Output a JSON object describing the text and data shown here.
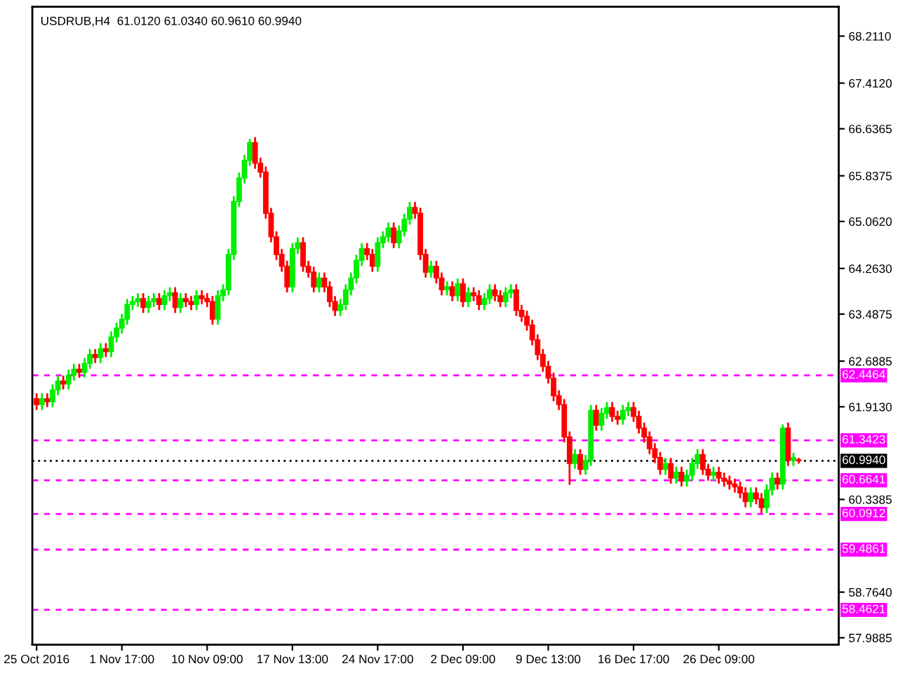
{
  "chart_data": {
    "type": "candlestick",
    "title": "USDRUB,H4  61.0120 61.0340 60.9610 60.9940",
    "categories": [
      "25 Oct 2016",
      null,
      null,
      null,
      null,
      null,
      null,
      null,
      null,
      null,
      null,
      null,
      null,
      null,
      null,
      null,
      "1 Nov 17:00",
      null,
      null,
      null,
      null,
      null,
      null,
      null,
      null,
      null,
      null,
      null,
      null,
      null,
      null,
      null,
      "10 Nov 09:00",
      null,
      null,
      null,
      null,
      null,
      null,
      null,
      null,
      null,
      null,
      null,
      null,
      null,
      null,
      null,
      "17 Nov 13:00",
      null,
      null,
      null,
      null,
      null,
      null,
      null,
      null,
      null,
      null,
      null,
      null,
      null,
      null,
      null,
      "24 Nov 17:00",
      null,
      null,
      null,
      null,
      null,
      null,
      null,
      null,
      null,
      null,
      null,
      null,
      null,
      null,
      null,
      "2 Dec 09:00",
      null,
      null,
      null,
      null,
      null,
      null,
      null,
      null,
      null,
      null,
      null,
      null,
      null,
      null,
      null,
      "9 Dec 13:00",
      null,
      null,
      null,
      null,
      null,
      null,
      null,
      null,
      null,
      null,
      null,
      null,
      null,
      null,
      null,
      "16 Dec 17:00",
      null,
      null,
      null,
      null,
      null,
      null,
      null,
      null,
      null,
      null,
      null,
      null,
      null,
      null,
      null,
      "26 Dec 09:00",
      null,
      null,
      null,
      null,
      null,
      null,
      null,
      null,
      null,
      null,
      null,
      null,
      null,
      null,
      null
    ],
    "ohlc": [
      [
        62.05,
        62.13,
        61.87,
        61.95
      ],
      [
        61.95,
        62.13,
        61.87,
        62.05
      ],
      [
        62.05,
        62.13,
        61.92,
        62.0
      ],
      [
        62.0,
        62.28,
        61.92,
        62.2
      ],
      [
        62.2,
        62.43,
        62.12,
        62.35
      ],
      [
        62.35,
        62.43,
        62.22,
        62.3
      ],
      [
        62.3,
        62.53,
        62.22,
        62.45
      ],
      [
        62.45,
        62.63,
        62.37,
        62.55
      ],
      [
        62.55,
        62.63,
        62.42,
        62.5
      ],
      [
        62.5,
        62.73,
        62.42,
        62.65
      ],
      [
        62.65,
        62.88,
        62.57,
        62.8
      ],
      [
        62.8,
        62.88,
        62.67,
        62.75
      ],
      [
        62.75,
        62.98,
        62.67,
        62.9
      ],
      [
        62.9,
        62.98,
        62.77,
        62.85
      ],
      [
        62.85,
        63.18,
        62.77,
        63.1
      ],
      [
        63.1,
        63.33,
        63.02,
        63.25
      ],
      [
        63.25,
        63.48,
        63.17,
        63.4
      ],
      [
        63.4,
        63.73,
        63.32,
        63.65
      ],
      [
        63.65,
        63.78,
        63.57,
        63.7
      ],
      [
        63.7,
        63.83,
        63.62,
        63.75
      ],
      [
        63.75,
        63.83,
        63.52,
        63.6
      ],
      [
        63.6,
        63.78,
        63.52,
        63.7
      ],
      [
        63.7,
        63.83,
        63.62,
        63.75
      ],
      [
        63.75,
        63.83,
        63.57,
        63.65
      ],
      [
        63.65,
        63.88,
        63.57,
        63.8
      ],
      [
        63.8,
        63.93,
        63.72,
        63.85
      ],
      [
        63.85,
        63.93,
        63.52,
        63.6
      ],
      [
        63.6,
        63.83,
        63.52,
        63.75
      ],
      [
        63.75,
        63.83,
        63.62,
        63.7
      ],
      [
        63.7,
        63.78,
        63.57,
        63.65
      ],
      [
        63.65,
        63.88,
        63.57,
        63.8
      ],
      [
        63.8,
        63.88,
        63.67,
        63.75
      ],
      [
        63.75,
        63.83,
        63.62,
        63.7
      ],
      [
        63.7,
        63.78,
        63.32,
        63.4
      ],
      [
        63.4,
        63.88,
        63.32,
        63.8
      ],
      [
        63.8,
        63.98,
        63.72,
        63.9
      ],
      [
        63.9,
        64.58,
        63.82,
        64.5
      ],
      [
        64.5,
        65.48,
        64.42,
        65.4
      ],
      [
        65.4,
        65.88,
        65.32,
        65.8
      ],
      [
        65.8,
        66.18,
        65.72,
        66.1
      ],
      [
        66.1,
        66.45,
        66.02,
        66.4
      ],
      [
        66.4,
        66.48,
        65.97,
        66.05
      ],
      [
        66.05,
        66.13,
        65.82,
        65.9
      ],
      [
        65.9,
        65.98,
        65.12,
        65.2
      ],
      [
        65.2,
        65.28,
        64.72,
        64.8
      ],
      [
        64.8,
        64.88,
        64.42,
        64.5
      ],
      [
        64.5,
        64.58,
        64.22,
        64.3
      ],
      [
        64.3,
        64.38,
        63.87,
        63.95
      ],
      [
        63.95,
        64.68,
        63.87,
        64.6
      ],
      [
        64.6,
        64.78,
        64.52,
        64.7
      ],
      [
        64.7,
        64.78,
        64.22,
        64.3
      ],
      [
        64.3,
        64.38,
        64.12,
        64.2
      ],
      [
        64.2,
        64.28,
        63.87,
        63.95
      ],
      [
        63.95,
        64.18,
        63.87,
        64.1
      ],
      [
        64.1,
        64.18,
        63.87,
        63.95
      ],
      [
        63.95,
        64.03,
        63.62,
        63.7
      ],
      [
        63.7,
        63.78,
        63.47,
        63.55
      ],
      [
        63.55,
        63.73,
        63.47,
        63.65
      ],
      [
        63.65,
        63.98,
        63.57,
        63.9
      ],
      [
        63.9,
        64.18,
        63.82,
        64.1
      ],
      [
        64.1,
        64.48,
        64.02,
        64.4
      ],
      [
        64.4,
        64.68,
        64.32,
        64.6
      ],
      [
        64.6,
        64.68,
        64.42,
        64.5
      ],
      [
        64.5,
        64.58,
        64.22,
        64.3
      ],
      [
        64.3,
        64.78,
        64.22,
        64.7
      ],
      [
        64.7,
        64.88,
        64.62,
        64.8
      ],
      [
        64.8,
        65.03,
        64.72,
        64.95
      ],
      [
        64.95,
        65.03,
        64.62,
        64.7
      ],
      [
        64.7,
        64.98,
        64.62,
        64.9
      ],
      [
        64.9,
        65.18,
        64.82,
        65.1
      ],
      [
        65.1,
        65.38,
        65.02,
        65.3
      ],
      [
        65.3,
        65.38,
        65.12,
        65.2
      ],
      [
        65.2,
        65.28,
        64.42,
        64.5
      ],
      [
        64.5,
        64.58,
        64.12,
        64.2
      ],
      [
        64.2,
        64.38,
        64.12,
        64.3
      ],
      [
        64.3,
        64.38,
        64.02,
        64.1
      ],
      [
        64.1,
        64.18,
        63.82,
        63.9
      ],
      [
        63.9,
        64.03,
        63.82,
        63.95
      ],
      [
        63.95,
        64.03,
        63.72,
        63.8
      ],
      [
        63.8,
        64.08,
        63.72,
        64.0
      ],
      [
        64.0,
        64.08,
        63.62,
        63.7
      ],
      [
        63.7,
        63.93,
        63.62,
        63.85
      ],
      [
        63.85,
        63.93,
        63.72,
        63.8
      ],
      [
        63.8,
        63.88,
        63.57,
        63.65
      ],
      [
        63.65,
        63.83,
        63.57,
        63.75
      ],
      [
        63.75,
        63.98,
        63.67,
        63.9
      ],
      [
        63.9,
        63.98,
        63.72,
        63.8
      ],
      [
        63.8,
        63.88,
        63.62,
        63.7
      ],
      [
        63.7,
        63.93,
        63.62,
        63.85
      ],
      [
        63.85,
        63.98,
        63.77,
        63.9
      ],
      [
        63.9,
        63.98,
        63.47,
        63.55
      ],
      [
        63.55,
        63.63,
        63.37,
        63.45
      ],
      [
        63.45,
        63.53,
        63.22,
        63.3
      ],
      [
        63.3,
        63.38,
        62.97,
        63.05
      ],
      [
        63.05,
        63.13,
        62.72,
        62.8
      ],
      [
        62.8,
        62.88,
        62.52,
        62.6
      ],
      [
        62.6,
        62.68,
        62.32,
        62.4
      ],
      [
        62.4,
        62.48,
        62.02,
        62.1
      ],
      [
        62.1,
        62.18,
        61.87,
        61.95
      ],
      [
        61.95,
        62.03,
        61.32,
        61.4
      ],
      [
        61.4,
        61.48,
        60.6,
        60.95
      ],
      [
        60.95,
        61.18,
        60.87,
        61.1
      ],
      [
        61.1,
        61.18,
        60.77,
        60.85
      ],
      [
        60.85,
        61.08,
        60.77,
        61.0
      ],
      [
        61.0,
        61.93,
        60.92,
        61.85
      ],
      [
        61.85,
        61.93,
        61.52,
        61.6
      ],
      [
        61.6,
        61.88,
        61.52,
        61.8
      ],
      [
        61.8,
        61.98,
        61.72,
        61.9
      ],
      [
        61.9,
        61.98,
        61.67,
        61.75
      ],
      [
        61.75,
        61.83,
        61.62,
        61.7
      ],
      [
        61.7,
        61.93,
        61.62,
        61.85
      ],
      [
        61.85,
        61.98,
        61.77,
        61.9
      ],
      [
        61.9,
        61.98,
        61.67,
        61.75
      ],
      [
        61.75,
        61.83,
        61.47,
        61.55
      ],
      [
        61.55,
        61.63,
        61.32,
        61.4
      ],
      [
        61.4,
        61.48,
        61.12,
        61.2
      ],
      [
        61.2,
        61.28,
        60.97,
        61.05
      ],
      [
        61.05,
        61.13,
        60.77,
        60.85
      ],
      [
        60.85,
        61.03,
        60.77,
        60.95
      ],
      [
        60.95,
        61.03,
        60.62,
        60.7
      ],
      [
        60.7,
        60.88,
        60.62,
        60.8
      ],
      [
        60.8,
        60.88,
        60.57,
        60.65
      ],
      [
        60.65,
        60.83,
        60.57,
        60.75
      ],
      [
        60.75,
        61.03,
        60.67,
        60.95
      ],
      [
        60.95,
        61.18,
        60.87,
        61.1
      ],
      [
        61.1,
        61.18,
        60.77,
        60.85
      ],
      [
        60.85,
        60.93,
        60.67,
        60.75
      ],
      [
        60.75,
        60.88,
        60.67,
        60.8
      ],
      [
        60.8,
        60.88,
        60.62,
        60.7
      ],
      [
        60.7,
        60.78,
        60.57,
        60.65
      ],
      [
        60.65,
        60.73,
        60.52,
        60.6
      ],
      [
        60.6,
        60.68,
        60.47,
        60.55
      ],
      [
        60.55,
        60.63,
        60.37,
        60.45
      ],
      [
        60.45,
        60.53,
        60.22,
        60.3
      ],
      [
        60.3,
        60.53,
        60.22,
        60.45
      ],
      [
        60.45,
        60.53,
        60.27,
        60.35
      ],
      [
        60.35,
        60.43,
        60.12,
        60.2
      ],
      [
        60.2,
        60.58,
        60.12,
        60.5
      ],
      [
        60.5,
        60.78,
        60.42,
        60.7
      ],
      [
        60.7,
        60.78,
        60.52,
        60.6
      ],
      [
        60.6,
        61.6,
        60.52,
        61.55
      ],
      [
        61.55,
        61.63,
        60.92,
        61.0
      ],
      [
        61.0,
        61.12,
        60.92,
        61.05
      ],
      [
        61.012,
        61.034,
        60.961,
        60.994
      ]
    ],
    "ylim": [
      57.87,
      68.71
    ],
    "yticks": [
      {
        "value": 68.211,
        "label": "68.2110"
      },
      {
        "value": 67.412,
        "label": "67.4120"
      },
      {
        "value": 66.6365,
        "label": "66.6365"
      },
      {
        "value": 65.8375,
        "label": "65.8375"
      },
      {
        "value": 65.062,
        "label": "65.0620"
      },
      {
        "value": 64.263,
        "label": "64.2630"
      },
      {
        "value": 63.4875,
        "label": "63.4875"
      },
      {
        "value": 62.6885,
        "label": "62.6885"
      },
      {
        "value": 61.913,
        "label": "61.9130"
      },
      {
        "value": 60.3385,
        "label": "60.3385"
      },
      {
        "value": 58.764,
        "label": "58.7640"
      },
      {
        "value": 57.9885,
        "label": "57.9885"
      }
    ],
    "ref_lines": [
      {
        "axis": "y",
        "value": 62.4464,
        "label": "62.4464",
        "color": "#ff00ff",
        "line_style": "dashed"
      },
      {
        "axis": "y",
        "value": 61.3423,
        "label": "61.3423",
        "color": "#ff00ff",
        "line_style": "dashed"
      },
      {
        "axis": "y",
        "value": 60.6641,
        "label": "60.6641",
        "color": "#ff00ff",
        "line_style": "dashed"
      },
      {
        "axis": "y",
        "value": 60.0912,
        "label": "60.0912",
        "color": "#ff00ff",
        "line_style": "dashed"
      },
      {
        "axis": "y",
        "value": 59.4861,
        "label": "59.4861",
        "color": "#ff00ff",
        "line_style": "dashed"
      },
      {
        "axis": "y",
        "value": 58.4621,
        "label": "58.4621",
        "color": "#ff00ff",
        "line_style": "dashed"
      },
      {
        "axis": "y",
        "value": 60.994,
        "label": "60.9940",
        "color": "#000000",
        "line_style": "dotted"
      }
    ],
    "grid": false
  }
}
